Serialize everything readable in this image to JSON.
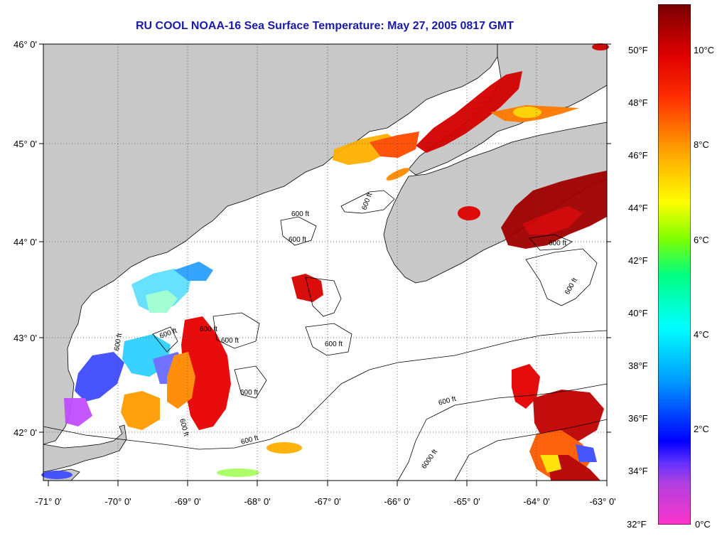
{
  "title": "RU COOL  NOAA-16  Sea Surface Temperature:  May 27, 2005 0817 GMT",
  "map": {
    "lat_labels": [
      "46° 0'",
      "45° 0'",
      "44° 0'",
      "43° 0'",
      "42° 0'"
    ],
    "lon_labels": [
      "-71° 0'",
      "-70° 0'",
      "-69° 0'",
      "-68° 0'",
      "-67° 0'",
      "-66° 0'",
      "-65° 0'",
      "-64° 0'",
      "-63° 0'"
    ],
    "isobath_labels": [
      "600 ft",
      "600 ft",
      "600 ft",
      "600 ft",
      "600 ft",
      "600 ft",
      "600 ft",
      "600 ft",
      "600 ft",
      "600 ft",
      "600 ft",
      "600 ft",
      "600 ft",
      "600 ft",
      "6000 ft"
    ],
    "colors": {
      "land": "#c8c8c8",
      "ocean_no_data": "#ffffff",
      "coastline": "#000000",
      "grid": "#555555"
    },
    "sst_colormap": [
      "#ff33cc",
      "#8a2be2",
      "#0000ff",
      "#00bfff",
      "#00ffff",
      "#00ff7f",
      "#7fff00",
      "#ffff00",
      "#ffa500",
      "#ff4500",
      "#ff0000",
      "#b20000",
      "#7a0000"
    ]
  },
  "colorbar": {
    "fahrenheit_labels": [
      "50°F",
      "48°F",
      "46°F",
      "44°F",
      "42°F",
      "40°F",
      "38°F",
      "36°F",
      "34°F",
      "32°F"
    ],
    "celsius_labels": [
      "10°C",
      "8°C",
      "6°C",
      "4°C",
      "2°C",
      "0°C"
    ]
  }
}
